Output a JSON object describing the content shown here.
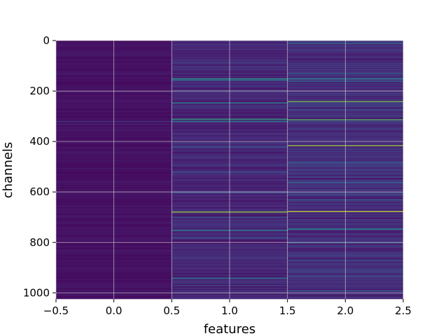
{
  "chart_data": {
    "type": "heatmap",
    "title": "",
    "xlabel": "features",
    "ylabel": "channels",
    "xlim": [
      -0.5,
      2.5
    ],
    "ylim": [
      1024,
      0
    ],
    "y_inverted": true,
    "grid": true,
    "colormap": "viridis",
    "n_rows": 1024,
    "n_cols": 3,
    "x_ticks": [
      -0.5,
      0.0,
      0.5,
      1.0,
      1.5,
      2.0,
      2.5
    ],
    "x_tick_labels": [
      "−0.5",
      "0.0",
      "0.5",
      "1.0",
      "1.5",
      "2.0",
      "2.5"
    ],
    "y_ticks": [
      0,
      200,
      400,
      600,
      800,
      1000
    ],
    "y_tick_labels": [
      "0",
      "200",
      "400",
      "600",
      "800",
      "1000"
    ],
    "columns": [
      {
        "feature": 0,
        "base_value": 0.06,
        "notable_rows": [
          {
            "row": 320,
            "value": 0.2
          },
          {
            "row": 330,
            "value": 0.15
          }
        ]
      },
      {
        "feature": 1,
        "base_value": 0.14,
        "notable_rows": [
          {
            "row": 150,
            "value": 0.65
          },
          {
            "row": 155,
            "value": 0.5
          },
          {
            "row": 245,
            "value": 0.55
          },
          {
            "row": 310,
            "value": 0.7
          },
          {
            "row": 318,
            "value": 0.6
          },
          {
            "row": 420,
            "value": 0.35
          },
          {
            "row": 520,
            "value": 0.35
          },
          {
            "row": 600,
            "value": 0.3
          },
          {
            "row": 678,
            "value": 0.9
          },
          {
            "row": 700,
            "value": 0.35
          },
          {
            "row": 750,
            "value": 0.6
          },
          {
            "row": 780,
            "value": 0.3
          },
          {
            "row": 860,
            "value": 0.25
          },
          {
            "row": 940,
            "value": 0.55
          },
          {
            "row": 970,
            "value": 0.3
          }
        ]
      },
      {
        "feature": 2,
        "base_value": 0.17,
        "notable_rows": [
          {
            "row": 10,
            "value": 0.45
          },
          {
            "row": 130,
            "value": 0.4
          },
          {
            "row": 150,
            "value": 0.6
          },
          {
            "row": 160,
            "value": 0.4
          },
          {
            "row": 240,
            "value": 0.85
          },
          {
            "row": 312,
            "value": 0.8
          },
          {
            "row": 415,
            "value": 0.9
          },
          {
            "row": 480,
            "value": 0.4
          },
          {
            "row": 560,
            "value": 0.4
          },
          {
            "row": 630,
            "value": 0.45
          },
          {
            "row": 676,
            "value": 0.95
          },
          {
            "row": 745,
            "value": 0.6
          },
          {
            "row": 800,
            "value": 0.35
          },
          {
            "row": 870,
            "value": 0.35
          },
          {
            "row": 990,
            "value": 0.4
          }
        ]
      }
    ]
  }
}
